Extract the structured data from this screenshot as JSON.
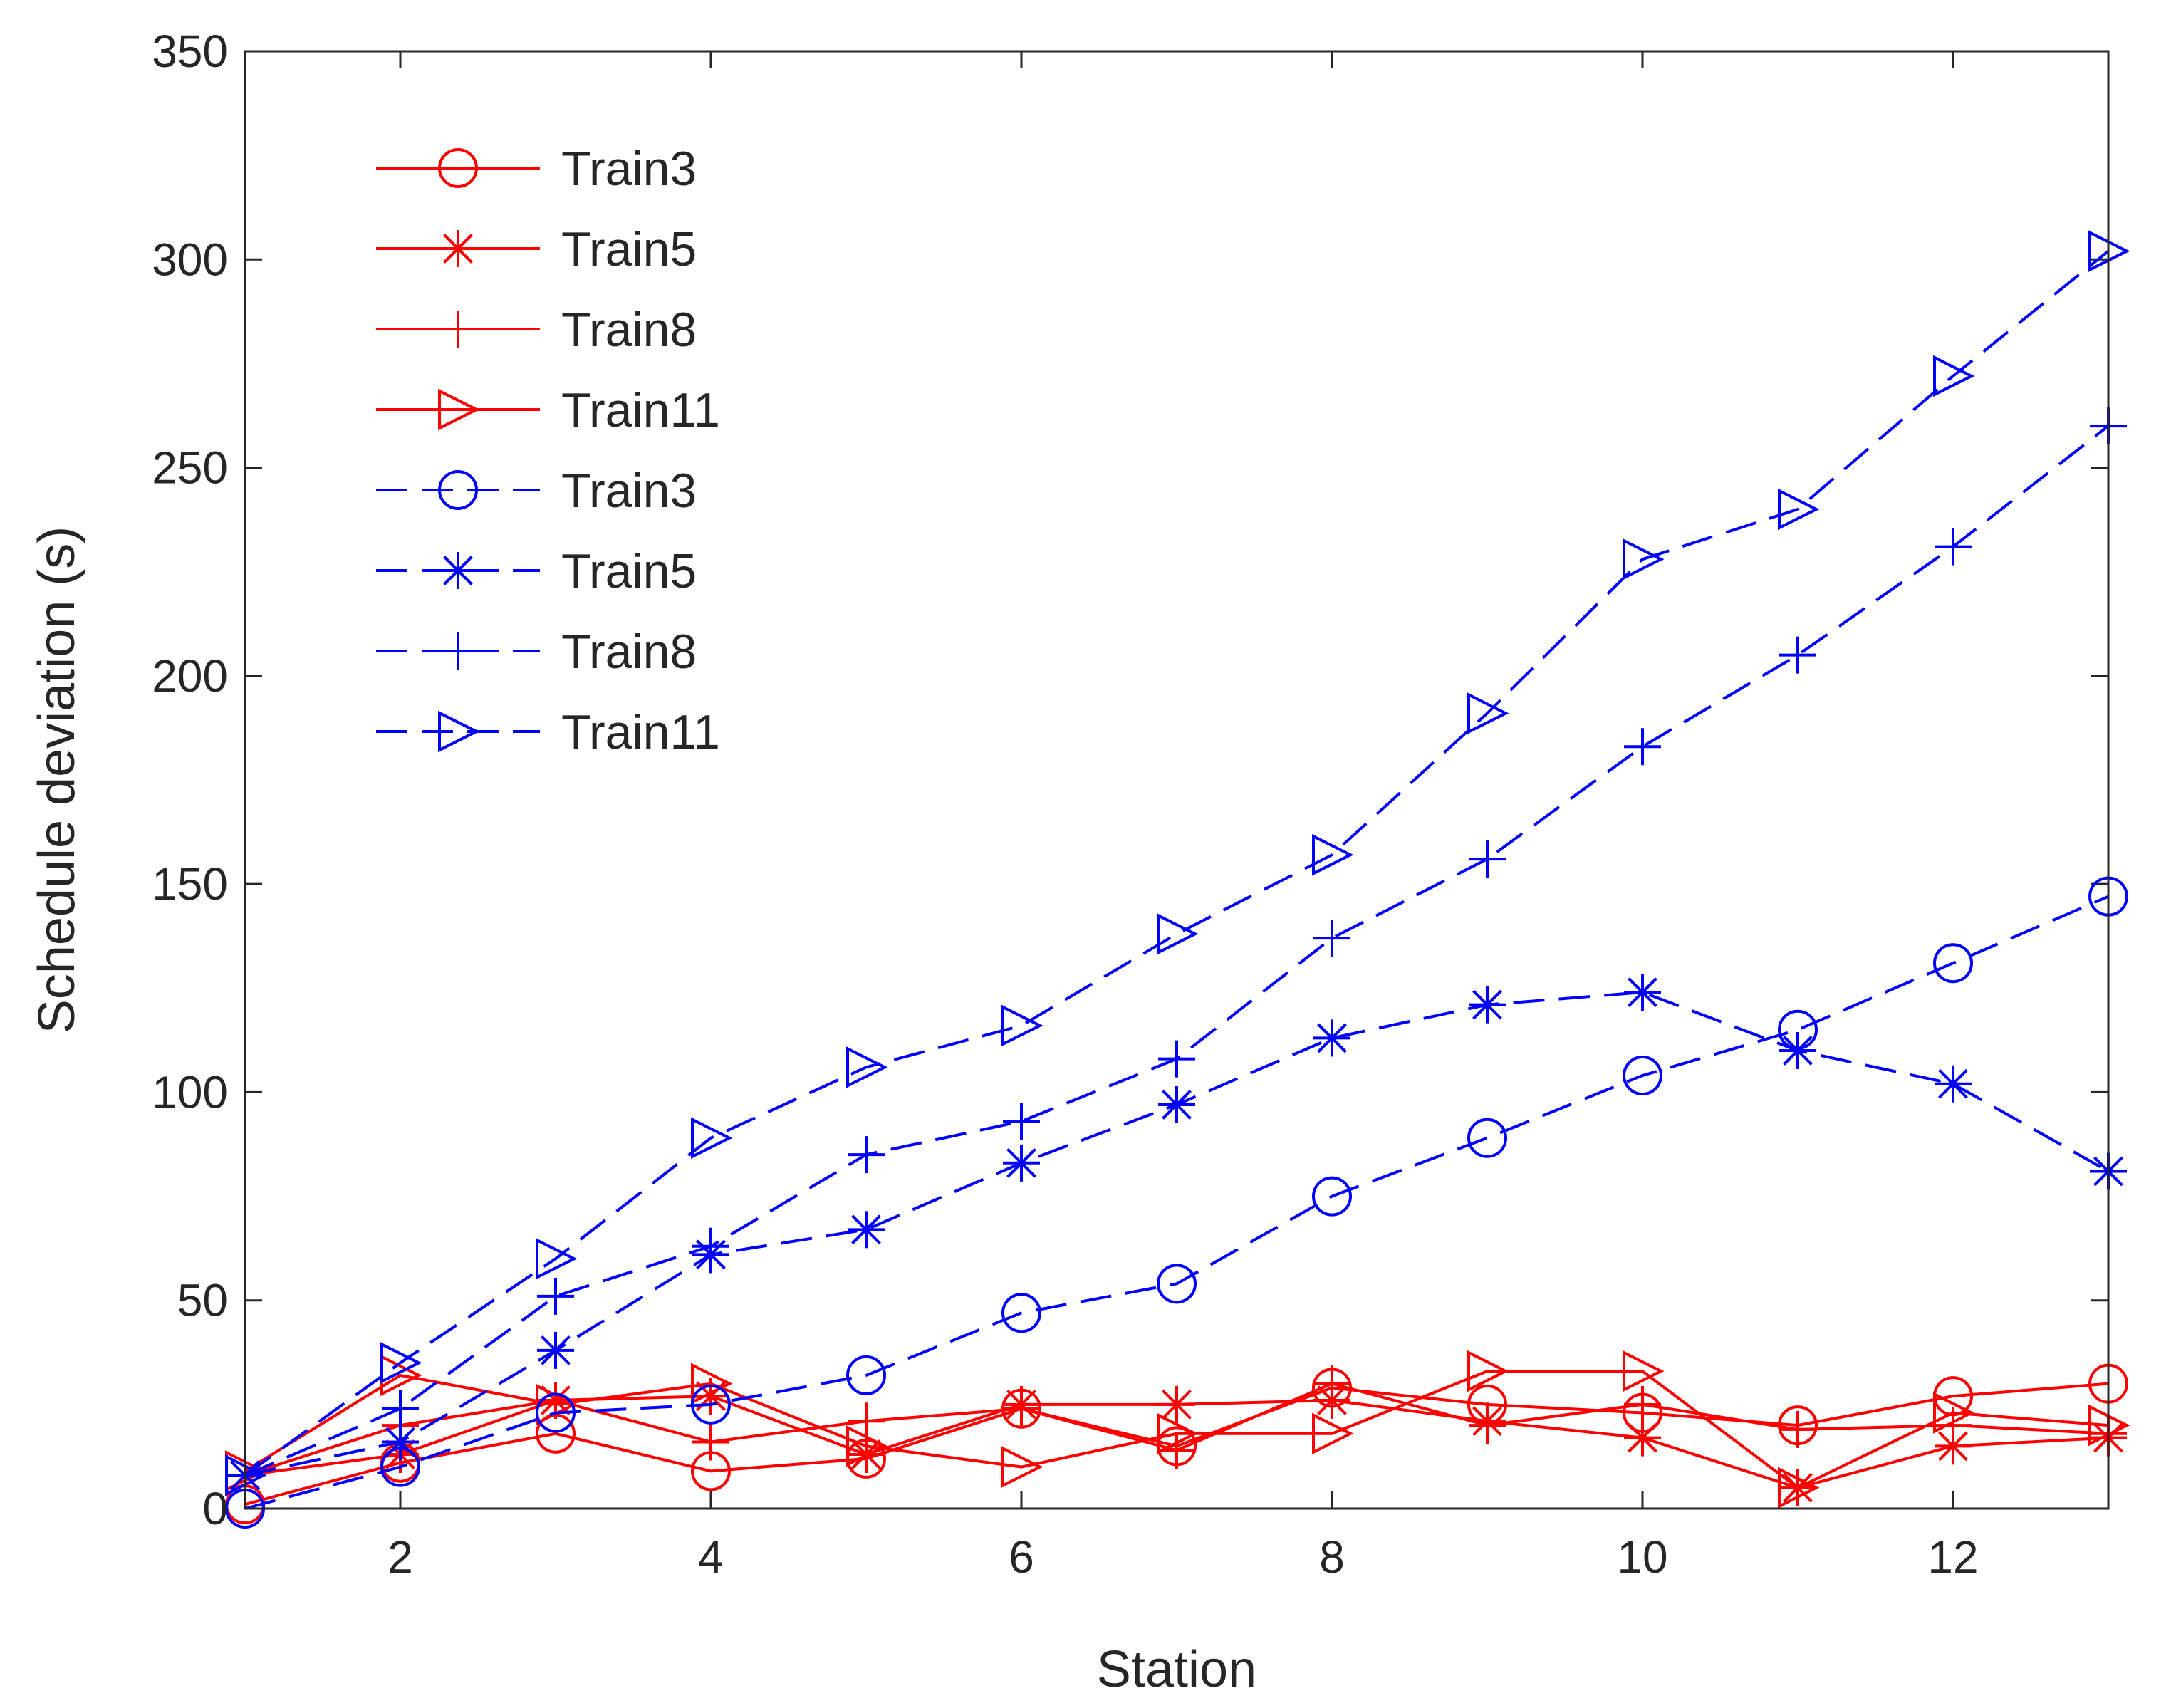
{
  "chart_data": {
    "type": "line",
    "title": "",
    "xlabel": "Station",
    "ylabel": "Schedule deviation (s)",
    "xlim": [
      1,
      13
    ],
    "ylim": [
      0,
      350
    ],
    "xticks": [
      2,
      4,
      6,
      8,
      10,
      12
    ],
    "yticks": [
      0,
      50,
      100,
      150,
      200,
      250,
      300,
      350
    ],
    "legend_position": "top-left",
    "x": [
      1,
      2,
      3,
      4,
      5,
      6,
      7,
      8,
      9,
      10,
      11,
      12,
      13
    ],
    "series": [
      {
        "name": "Train3",
        "color": "#ff0000",
        "dash": "solid",
        "marker": "circle",
        "values": [
          1,
          11,
          18,
          9,
          12,
          24,
          15,
          29,
          25,
          23,
          20,
          27,
          30
        ]
      },
      {
        "name": "Train5",
        "color": "#ff0000",
        "dash": "solid",
        "marker": "asterisk",
        "values": [
          8,
          13,
          26,
          27,
          13,
          25,
          25,
          26,
          21,
          17,
          5,
          15,
          17
        ]
      },
      {
        "name": "Train8",
        "color": "#ff0000",
        "dash": "solid",
        "marker": "plus",
        "values": [
          8,
          20,
          26,
          16,
          21,
          24,
          14,
          30,
          20,
          25,
          19,
          20,
          18
        ]
      },
      {
        "name": "Train11",
        "color": "#ff0000",
        "dash": "solid",
        "marker": "triangle-right",
        "values": [
          9,
          32,
          25,
          30,
          15,
          10,
          18,
          18,
          33,
          33,
          5,
          23,
          20
        ]
      },
      {
        "name": "Train3",
        "color": "#0000ff",
        "dash": "dashed",
        "marker": "circle",
        "values": [
          0,
          10,
          23,
          25,
          32,
          47,
          54,
          75,
          89,
          104,
          115,
          131,
          147
        ]
      },
      {
        "name": "Train5",
        "color": "#0000ff",
        "dash": "dashed",
        "marker": "asterisk",
        "values": [
          8,
          16,
          38,
          61,
          67,
          83,
          97,
          113,
          121,
          124,
          110,
          102,
          81
        ]
      },
      {
        "name": "Train8",
        "color": "#0000ff",
        "dash": "dashed",
        "marker": "plus",
        "values": [
          8,
          24,
          51,
          63,
          85,
          93,
          108,
          137,
          156,
          183,
          205,
          231,
          260
        ]
      },
      {
        "name": "Train11",
        "color": "#0000ff",
        "dash": "dashed",
        "marker": "triangle-right",
        "values": [
          8,
          35,
          60,
          89,
          106,
          116,
          138,
          157,
          191,
          228,
          240,
          272,
          302
        ]
      }
    ]
  }
}
